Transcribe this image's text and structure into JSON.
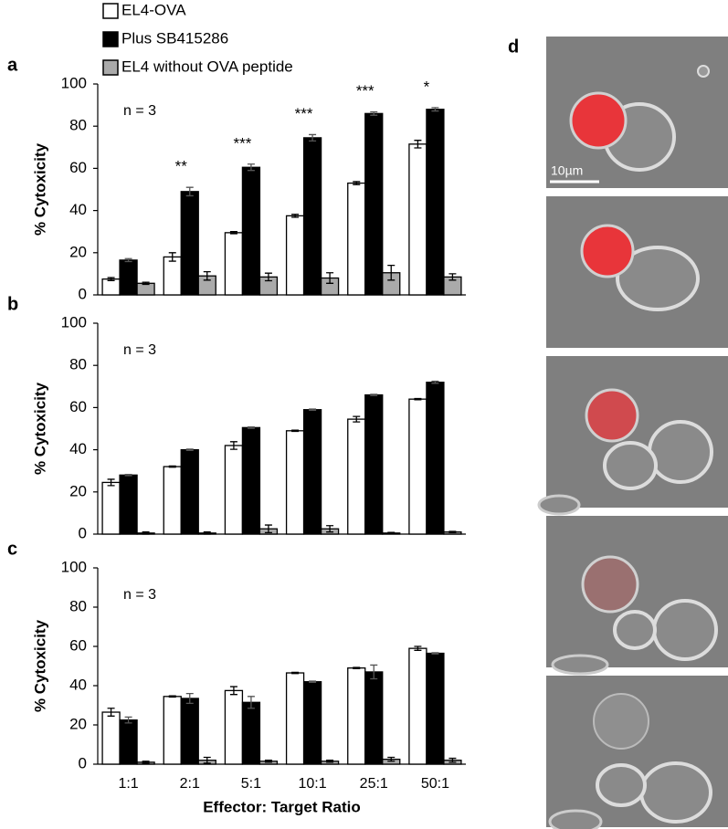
{
  "chart_data": [
    {
      "type": "bar",
      "label": "a",
      "ylabel": "% Cytoxicity",
      "note": "n = 3",
      "ylim": [
        0,
        100
      ],
      "yticks": [
        0,
        20,
        40,
        60,
        80,
        100
      ],
      "annotations": [
        null,
        "**",
        "***",
        "***",
        "***",
        "*"
      ],
      "series": [
        {
          "name": "EL4-OVA",
          "color": "#ffffff",
          "values": [
            7.5,
            18,
            29.5,
            37.5,
            53,
            71.5
          ],
          "errors": [
            0.7,
            2,
            0.5,
            0.7,
            0.7,
            1.8
          ]
        },
        {
          "name": "Plus SB415286",
          "color": "#000000",
          "values": [
            16.5,
            49,
            60.5,
            74.5,
            86,
            88
          ],
          "errors": [
            0.7,
            2,
            1.5,
            1.5,
            0.8,
            0.8
          ]
        },
        {
          "name": "EL4 without OVA peptide",
          "color": "#aaaaaa",
          "values": [
            5.5,
            9,
            8.5,
            8,
            10.5,
            8.5
          ],
          "errors": [
            0.5,
            2,
            1.8,
            2.5,
            3.5,
            1.5
          ]
        }
      ]
    },
    {
      "type": "bar",
      "label": "b",
      "ylabel": "% Cytoxicity",
      "note": "n = 3",
      "ylim": [
        0,
        100
      ],
      "yticks": [
        0,
        20,
        40,
        60,
        80,
        100
      ],
      "series": [
        {
          "color": "#ffffff",
          "values": [
            24.5,
            32,
            42,
            49,
            54.5,
            64
          ],
          "errors": [
            1.5,
            0.3,
            1.8,
            0.3,
            1.3,
            0.3
          ]
        },
        {
          "color": "#000000",
          "values": [
            28,
            40,
            50.5,
            59,
            66,
            72
          ],
          "errors": [
            0.3,
            0.3,
            0.3,
            0.3,
            0.3,
            0.5
          ]
        },
        {
          "color": "#aaaaaa",
          "values": [
            0.5,
            0.5,
            2.5,
            2.5,
            0.5,
            1
          ],
          "errors": [
            0.5,
            0.5,
            1.8,
            1.5,
            0.3,
            0.3
          ]
        }
      ]
    },
    {
      "type": "bar",
      "label": "c",
      "ylabel": "% Cytoxicity",
      "note": "n = 3",
      "xlabel": "Effector: Target Ratio",
      "categories": [
        "1:1",
        "2:1",
        "5:1",
        "10:1",
        "25:1",
        "50:1"
      ],
      "ylim": [
        0,
        100
      ],
      "yticks": [
        0,
        20,
        40,
        60,
        80,
        100
      ],
      "series": [
        {
          "color": "#ffffff",
          "values": [
            26.5,
            34.5,
            37.5,
            46.5,
            49,
            59
          ],
          "errors": [
            2,
            0.3,
            2,
            0.3,
            0.3,
            1
          ]
        },
        {
          "color": "#000000",
          "values": [
            22.5,
            33.5,
            31.5,
            42,
            47,
            56.5
          ],
          "errors": [
            1.5,
            2.5,
            3,
            0.3,
            3.5,
            0.3
          ]
        },
        {
          "color": "#aaaaaa",
          "values": [
            1,
            2,
            1.5,
            1.5,
            2.5,
            2
          ],
          "errors": [
            0.5,
            1.5,
            0.5,
            0.5,
            1,
            1
          ]
        }
      ]
    }
  ],
  "panel_d": {
    "label": "d",
    "scale_bar": "10µm"
  }
}
